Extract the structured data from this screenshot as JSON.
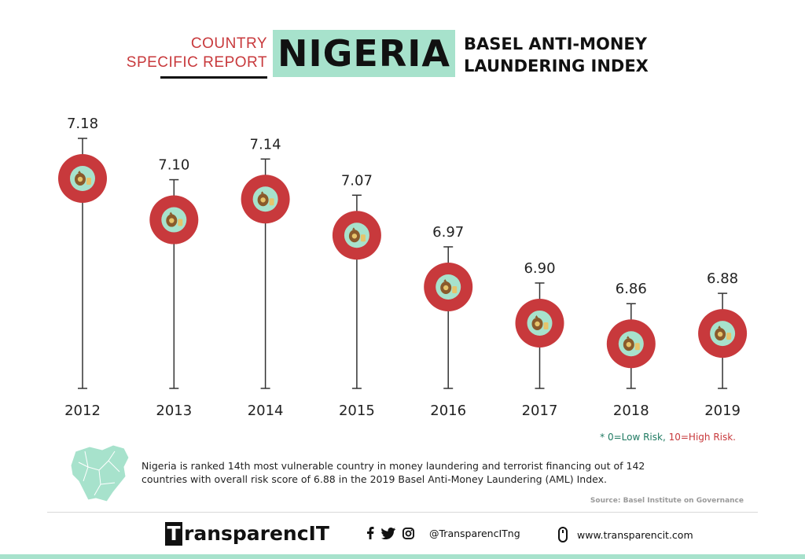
{
  "header": {
    "subtitle_line1": "COUNTRY",
    "subtitle_line2": "SPECIFIC REPORT",
    "country": "NIGERIA",
    "title_line1": "BASEL ANTI-MONEY",
    "title_line2": "LAUNDERING INDEX"
  },
  "chart_data": {
    "type": "scatter",
    "title": "BASEL ANTI-MONEY LAUNDERING INDEX",
    "categories": [
      "2012",
      "2013",
      "2014",
      "2015",
      "2016",
      "2017",
      "2018",
      "2019"
    ],
    "values": [
      7.18,
      7.1,
      7.14,
      7.07,
      6.97,
      6.9,
      6.86,
      6.88
    ],
    "value_labels": [
      "7.18",
      "7.10",
      "7.14",
      "7.07",
      "6.97",
      "6.90",
      "6.86",
      "6.88"
    ],
    "ylim": [
      6.5,
      7.4
    ],
    "grid": false,
    "marker_icon": "money-bag-icon",
    "colors": {
      "marker": "#c8393c",
      "marker_inner": "#a7e2cc",
      "stem": "#333333"
    }
  },
  "note": {
    "prefix": "* ",
    "low": "0=Low Risk,",
    "high": "10=High Risk."
  },
  "description": "Nigeria is ranked 14th most vulnerable country in money laundering and terrorist financing out of 142 countries with overall risk score of 6.88 in the 2019 Basel Anti-Money Laundering (AML) Index.",
  "source": "Source: Basel Institute on Governance",
  "footer": {
    "brand_first": "T",
    "brand_rest": "ransparencIT",
    "social_icons": [
      "facebook-icon",
      "twitter-icon",
      "instagram-icon"
    ],
    "handle": "@TransparencITng",
    "website_icon": "mouse-icon",
    "website": "www.transparencit.com"
  },
  "colors": {
    "accent_red": "#c8393c",
    "accent_mint": "#a7e2cc",
    "text": "#111111"
  }
}
